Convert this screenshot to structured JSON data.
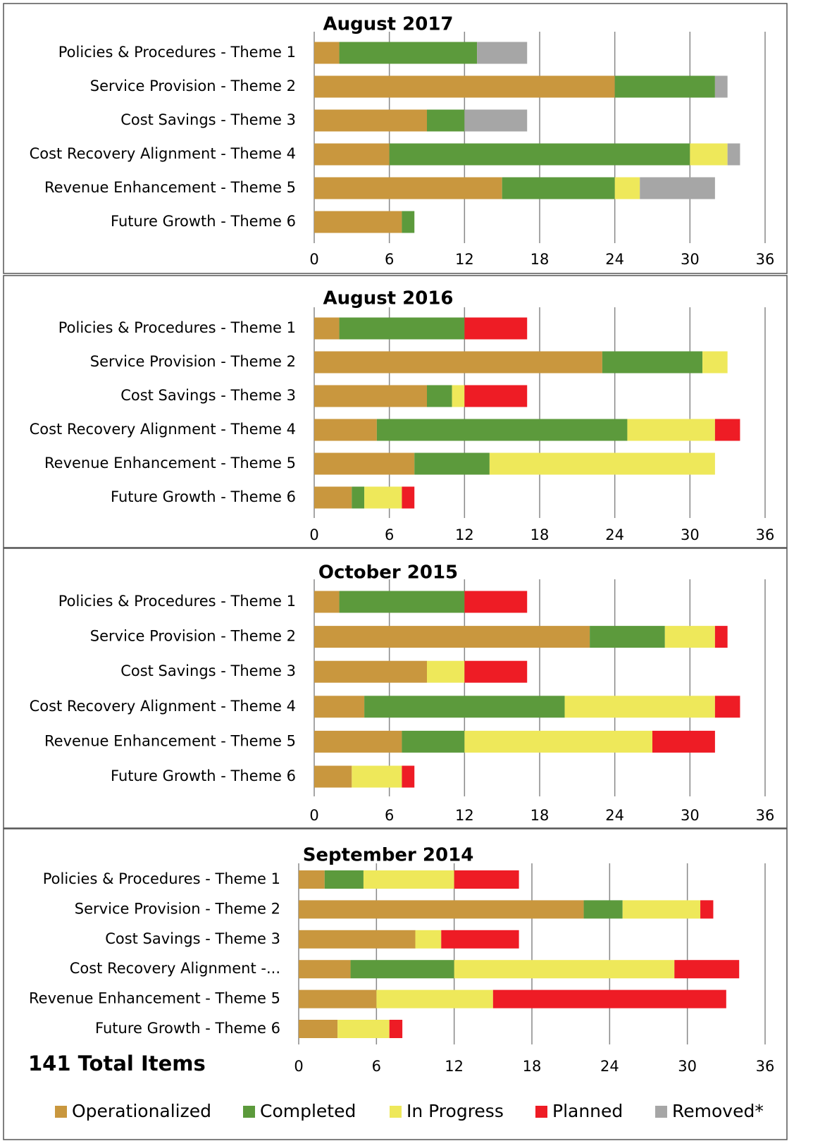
{
  "chart_data": [
    {
      "type": "bar",
      "title": "August 2017",
      "categories": [
        "Policies  & Procedures - Theme 1",
        "Service Provision - Theme 2",
        "Cost Savings - Theme 3",
        "Cost Recovery Alignment - Theme 4",
        "Revenue Enhancement - Theme 5",
        "Future Growth - Theme 6"
      ],
      "series": [
        {
          "name": "Operationalized",
          "color": "#c9973e",
          "values": [
            2,
            24,
            9,
            6,
            15,
            7
          ]
        },
        {
          "name": "Completed",
          "color": "#5c9a3c",
          "values": [
            11,
            8,
            3,
            24,
            9,
            1
          ]
        },
        {
          "name": "In Progress",
          "color": "#eee85a",
          "values": [
            0,
            0,
            0,
            3,
            2,
            0
          ]
        },
        {
          "name": "Planned",
          "color": "#ee1c25",
          "values": [
            0,
            0,
            0,
            0,
            0,
            0
          ]
        },
        {
          "name": "Removed*",
          "color": "#a6a6a6",
          "values": [
            4,
            1,
            5,
            1,
            6,
            0
          ]
        }
      ],
      "xlim": [
        0,
        36
      ],
      "xticks": [
        0,
        6,
        12,
        18,
        24,
        30,
        36
      ],
      "grid": true
    },
    {
      "type": "bar",
      "title": "August 2016",
      "categories": [
        "Policies  & Procedures - Theme 1",
        "Service Provision - Theme 2",
        "Cost Savings - Theme 3",
        "Cost Recovery Alignment - Theme 4",
        "Revenue Enhancement - Theme 5",
        "Future Growth - Theme 6"
      ],
      "series": [
        {
          "name": "Operationalized",
          "color": "#c9973e",
          "values": [
            2,
            23,
            9,
            5,
            8,
            3
          ]
        },
        {
          "name": "Completed",
          "color": "#5c9a3c",
          "values": [
            10,
            8,
            2,
            20,
            6,
            1
          ]
        },
        {
          "name": "In Progress",
          "color": "#eee85a",
          "values": [
            0,
            2,
            1,
            7,
            18,
            3
          ]
        },
        {
          "name": "Planned",
          "color": "#ee1c25",
          "values": [
            5,
            0,
            5,
            2,
            0,
            1
          ]
        },
        {
          "name": "Removed*",
          "color": "#a6a6a6",
          "values": [
            0,
            0,
            0,
            0,
            0,
            0
          ]
        }
      ],
      "xlim": [
        0,
        36
      ],
      "xticks": [
        0,
        6,
        12,
        18,
        24,
        30,
        36
      ],
      "grid": true
    },
    {
      "type": "bar",
      "title": "October 2015",
      "categories": [
        "Policies  & Procedures - Theme 1",
        "Service Provision - Theme 2",
        "Cost Savings - Theme 3",
        "Cost Recovery Alignment - Theme 4",
        "Revenue Enhancement - Theme 5",
        "Future Growth - Theme 6"
      ],
      "series": [
        {
          "name": "Operationalized",
          "color": "#c9973e",
          "values": [
            2,
            22,
            9,
            4,
            7,
            3
          ]
        },
        {
          "name": "Completed",
          "color": "#5c9a3c",
          "values": [
            10,
            6,
            0,
            16,
            5,
            0
          ]
        },
        {
          "name": "In Progress",
          "color": "#eee85a",
          "values": [
            0,
            4,
            3,
            12,
            15,
            4
          ]
        },
        {
          "name": "Planned",
          "color": "#ee1c25",
          "values": [
            5,
            1,
            5,
            2,
            5,
            1
          ]
        },
        {
          "name": "Removed*",
          "color": "#a6a6a6",
          "values": [
            0,
            0,
            0,
            0,
            0,
            0
          ]
        }
      ],
      "xlim": [
        0,
        36
      ],
      "xticks": [
        0,
        6,
        12,
        18,
        24,
        30,
        36
      ],
      "grid": true
    },
    {
      "type": "bar",
      "title": "September 2014",
      "categories": [
        "Policies  & Procedures - Theme 1",
        "Service Provision - Theme 2",
        "Cost Savings - Theme 3",
        "Cost Recovery Alignment -...",
        "Revenue Enhancement - Theme 5",
        "Future Growth - Theme 6"
      ],
      "series": [
        {
          "name": "Operationalized",
          "color": "#c9973e",
          "values": [
            2,
            22,
            9,
            4,
            6,
            3
          ]
        },
        {
          "name": "Completed",
          "color": "#5c9a3c",
          "values": [
            3,
            3,
            0,
            8,
            0,
            0
          ]
        },
        {
          "name": "In Progress",
          "color": "#eee85a",
          "values": [
            7,
            6,
            2,
            17,
            9,
            4
          ]
        },
        {
          "name": "Planned",
          "color": "#ee1c25",
          "values": [
            5,
            1,
            6,
            5,
            18,
            1
          ]
        },
        {
          "name": "Removed*",
          "color": "#a6a6a6",
          "values": [
            0,
            0,
            0,
            0,
            0,
            0
          ]
        }
      ],
      "xlim": [
        0,
        36
      ],
      "xticks": [
        0,
        6,
        12,
        18,
        24,
        30,
        36
      ],
      "grid": true
    }
  ],
  "total_label": "141 Total Items"
}
